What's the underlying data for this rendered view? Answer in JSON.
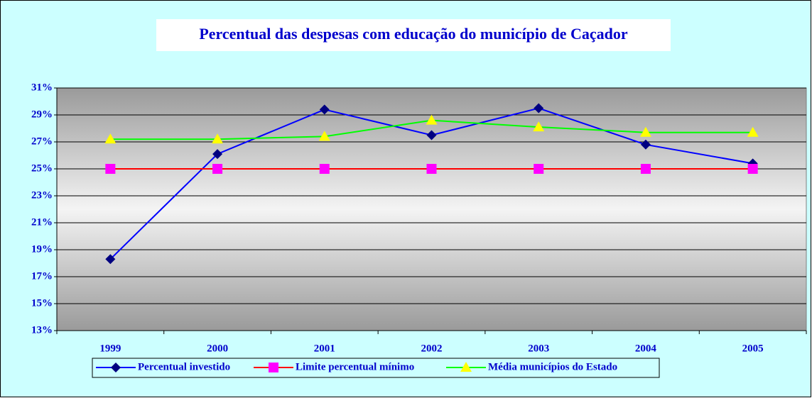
{
  "chart_data": {
    "type": "line",
    "title": "Percentual das despesas com educação do município de Caçador",
    "categories": [
      "1999",
      "2000",
      "2001",
      "2002",
      "2003",
      "2004",
      "2005"
    ],
    "series": [
      {
        "name": "Percentual investido",
        "color": "#0000ff",
        "marker": "diamond",
        "marker_color": "#000080",
        "values": [
          18.3,
          26.1,
          29.4,
          27.5,
          29.5,
          26.8,
          25.4
        ]
      },
      {
        "name": "Limite percentual mínimo",
        "color": "#ff0000",
        "marker": "square",
        "marker_color": "#ff00ff",
        "values": [
          25,
          25,
          25,
          25,
          25,
          25,
          25
        ]
      },
      {
        "name": "Média municípios do Estado",
        "color": "#00ff00",
        "marker": "triangle",
        "marker_color": "#ffff00",
        "values": [
          27.2,
          27.2,
          27.4,
          28.6,
          28.1,
          27.7,
          27.7
        ]
      }
    ],
    "ylim": [
      13,
      31
    ],
    "yticks": [
      {
        "value": 13,
        "label": "13%"
      },
      {
        "value": 15,
        "label": "15%"
      },
      {
        "value": 17,
        "label": "17%"
      },
      {
        "value": 19,
        "label": "19%"
      },
      {
        "value": 21,
        "label": "21%"
      },
      {
        "value": 23,
        "label": "23%"
      },
      {
        "value": 25,
        "label": "25%"
      },
      {
        "value": 27,
        "label": "27%"
      },
      {
        "value": 29,
        "label": "29%"
      },
      {
        "value": 31,
        "label": "31%"
      }
    ],
    "grid": true,
    "legend": "bottom"
  }
}
